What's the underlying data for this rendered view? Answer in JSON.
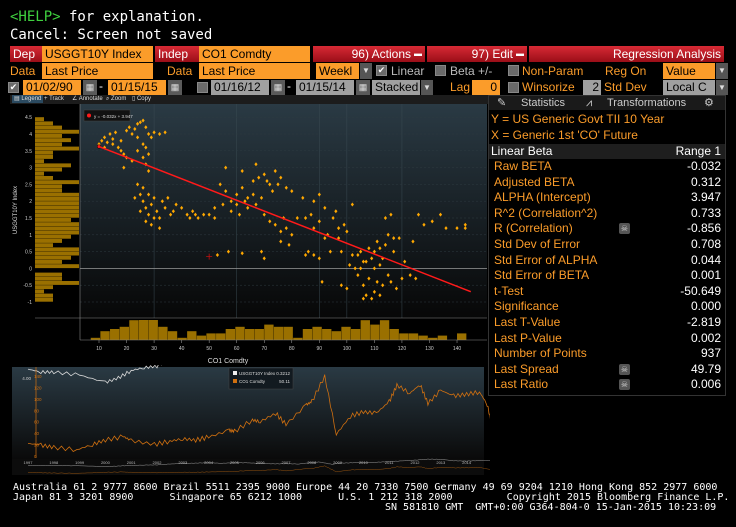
{
  "command_line": {
    "help_key": "<HELP>",
    "help_text": " for explanation.",
    "status": "Cancel: Screen not saved"
  },
  "toolbar": {
    "dep_label": "Dep",
    "dep_value": "USGGT10Y Index",
    "indep_label": "Indep",
    "indep_value": "CO1 Comdty",
    "actions_label": "96) Actions",
    "edit_label": "97) Edit",
    "title": "Regression Analysis",
    "dep_data_label": "Data",
    "dep_data_value": "Last Price",
    "indep_data_label": "Data",
    "indep_data_value": "Last Price",
    "period": "Weekl",
    "linear_label": "Linear",
    "linear_checked": true,
    "beta_label": "Beta +/-",
    "nonparam_label": "Non-Param",
    "reg_on_label": "Reg On",
    "reg_on_value": "Value",
    "range1_start": "01/02/90",
    "range1_end": "01/15/15",
    "range1_checked": true,
    "range2_start": "01/16/12",
    "range2_end": "01/15/14",
    "range2_checked": false,
    "display_mode": "Stacked",
    "lag_label": "Lag",
    "lag_value": "0",
    "winsorize_label": "Winsorize",
    "std_dev_value": "2",
    "std_dev_label": "Std Dev",
    "currency": "Local C",
    "dash": "-"
  },
  "chart_toolbar": {
    "legend": "Legend",
    "track": "Track",
    "annotate": "Annotate",
    "zoom": "Zoom",
    "copy": "Copy"
  },
  "stats_panel": {
    "tab_statistics": "Statistics",
    "tab_transformations": "Transformations",
    "y_desc": "Y = US Generic Govt TII 10 Year",
    "x_desc": "X = Generic 1st 'CO' Future",
    "header_left": "Linear Beta",
    "header_right": "Range 1",
    "rows": [
      {
        "label": "Raw BETA",
        "value": "-0.032",
        "icon": false
      },
      {
        "label": "Adjusted BETA",
        "value": "0.312",
        "icon": false
      },
      {
        "label": "ALPHA (Intercept)",
        "value": "3.947",
        "icon": false
      },
      {
        "label": "R^2 (Correlation^2)",
        "value": "0.733",
        "icon": false
      },
      {
        "label": "R (Correlation)",
        "value": "-0.856",
        "icon": true
      },
      {
        "label": "Std Dev of Error",
        "value": "0.708",
        "icon": false
      },
      {
        "label": "Std Error of ALPHA",
        "value": "0.044",
        "icon": false
      },
      {
        "label": "Std Error of BETA",
        "value": "0.001",
        "icon": false
      },
      {
        "label": "t-Test",
        "value": "-50.649",
        "icon": false
      },
      {
        "label": "Significance",
        "value": "0.000",
        "icon": false
      },
      {
        "label": "Last T-Value",
        "value": "-2.819",
        "icon": false
      },
      {
        "label": "Last P-Value",
        "value": "0.002",
        "icon": false
      },
      {
        "label": "Number of Points",
        "value": "937",
        "icon": false
      },
      {
        "label": "Last Spread",
        "value": "49.79",
        "icon": true
      },
      {
        "label": "Last Ratio",
        "value": "0.006",
        "icon": true
      }
    ]
  },
  "chart_data": [
    {
      "type": "scatter",
      "xlabel": "CO1 Comdty",
      "ylabel": "USGGT10Y Index",
      "legend": "y = -0.032x + 3.947",
      "xlim": [
        5,
        150
      ],
      "ylim": [
        -1.2,
        4.7
      ],
      "x_ticks": [
        10,
        20,
        30,
        40,
        50,
        60,
        70,
        80,
        90,
        100,
        110,
        120,
        130,
        140
      ],
      "y_ticks": [
        4.5,
        4,
        3.5,
        3,
        2.5,
        2,
        1.5,
        1,
        0.5,
        0,
        -0.5,
        -1
      ],
      "regression": {
        "slope": -0.032,
        "intercept": 3.947,
        "x_range": [
          10,
          145
        ]
      },
      "last_point": [
        50,
        0.35
      ],
      "colors": {
        "points": "#ffa800",
        "line": "#ff1a1a",
        "hist": "#9a7000"
      },
      "points": [
        [
          10,
          3.7
        ],
        [
          11,
          3.8
        ],
        [
          12,
          3.9
        ],
        [
          13,
          3.75
        ],
        [
          14,
          4.0
        ],
        [
          15,
          3.85
        ],
        [
          16,
          4.05
        ],
        [
          17,
          3.6
        ],
        [
          18,
          3.5
        ],
        [
          19,
          3.4
        ],
        [
          20,
          4.1
        ],
        [
          21,
          4.2
        ],
        [
          22,
          4.0
        ],
        [
          23,
          4.15
        ],
        [
          24,
          4.3
        ],
        [
          25,
          4.35
        ],
        [
          26,
          4.4
        ],
        [
          27,
          4.2
        ],
        [
          28,
          4.0
        ],
        [
          29,
          3.9
        ],
        [
          30,
          4.05
        ],
        [
          32,
          4.0
        ],
        [
          34,
          4.05
        ],
        [
          20,
          3.3
        ],
        [
          22,
          3.2
        ],
        [
          24,
          3.5
        ],
        [
          26,
          3.3
        ],
        [
          27,
          3.1
        ],
        [
          28,
          2.9
        ],
        [
          19,
          3.0
        ],
        [
          27,
          3.6
        ],
        [
          28,
          3.4
        ],
        [
          12,
          3.6
        ],
        [
          15,
          3.7
        ],
        [
          18,
          3.8
        ],
        [
          24,
          3.9
        ],
        [
          26,
          3.7
        ],
        [
          24,
          2.5
        ],
        [
          25,
          2.2
        ],
        [
          26,
          2.0
        ],
        [
          27,
          1.8
        ],
        [
          28,
          1.6
        ],
        [
          29,
          1.9
        ],
        [
          30,
          2.1
        ],
        [
          31,
          1.7
        ],
        [
          32,
          1.5
        ],
        [
          33,
          2.0
        ],
        [
          34,
          1.8
        ],
        [
          35,
          2.1
        ],
        [
          36,
          1.6
        ],
        [
          38,
          1.9
        ],
        [
          40,
          1.8
        ],
        [
          42,
          1.6
        ],
        [
          44,
          1.7
        ],
        [
          46,
          1.5
        ],
        [
          48,
          1.6
        ],
        [
          27,
          1.4
        ],
        [
          29,
          1.3
        ],
        [
          32,
          1.2
        ],
        [
          23,
          2.1
        ],
        [
          26,
          2.4
        ],
        [
          25,
          1.7
        ],
        [
          28,
          2.2
        ],
        [
          30,
          1.5
        ],
        [
          37,
          1.7
        ],
        [
          43,
          1.5
        ],
        [
          45,
          1.6
        ],
        [
          50,
          1.6
        ],
        [
          52,
          1.8
        ],
        [
          54,
          2.5
        ],
        [
          56,
          2.3
        ],
        [
          58,
          2.0
        ],
        [
          60,
          2.2
        ],
        [
          62,
          2.4
        ],
        [
          64,
          2.1
        ],
        [
          66,
          2.6
        ],
        [
          68,
          2.7
        ],
        [
          70,
          2.8
        ],
        [
          72,
          2.5
        ],
        [
          74,
          2.9
        ],
        [
          76,
          2.7
        ],
        [
          78,
          2.4
        ],
        [
          80,
          2.3
        ],
        [
          52,
          1.5
        ],
        [
          55,
          1.9
        ],
        [
          58,
          1.7
        ],
        [
          61,
          1.6
        ],
        [
          64,
          1.8
        ],
        [
          67,
          1.9
        ],
        [
          70,
          1.6
        ],
        [
          72,
          1.4
        ],
        [
          74,
          1.3
        ],
        [
          76,
          1.1
        ],
        [
          78,
          1.2
        ],
        [
          80,
          1.0
        ],
        [
          82,
          1.5
        ],
        [
          76,
          0.8
        ],
        [
          79,
          0.7
        ],
        [
          56,
          3.0
        ],
        [
          62,
          2.9
        ],
        [
          67,
          3.1
        ],
        [
          60,
          1.9
        ],
        [
          63,
          2.0
        ],
        [
          66,
          2.2
        ],
        [
          69,
          2.1
        ],
        [
          71,
          2.6
        ],
        [
          73,
          2.3
        ],
        [
          75,
          2.5
        ],
        [
          77,
          1.5
        ],
        [
          53,
          0.4
        ],
        [
          57,
          0.5
        ],
        [
          62,
          0.45
        ],
        [
          69,
          0.5
        ],
        [
          70,
          0.3
        ],
        [
          84,
          2.1
        ],
        [
          88,
          2.0
        ],
        [
          90,
          2.2
        ],
        [
          92,
          1.8
        ],
        [
          85,
          1.5
        ],
        [
          88,
          1.2
        ],
        [
          90,
          1.4
        ],
        [
          93,
          1.0
        ],
        [
          95,
          1.5
        ],
        [
          97,
          1.2
        ],
        [
          99,
          1.3
        ],
        [
          86,
          0.5
        ],
        [
          88,
          0.4
        ],
        [
          90,
          0.3
        ],
        [
          94,
          0.5
        ],
        [
          97,
          0.9
        ],
        [
          100,
          1.1
        ],
        [
          102,
          1.9
        ],
        [
          85,
          0.4
        ],
        [
          91,
          -0.4
        ],
        [
          87,
          1.6
        ],
        [
          92,
          0.9
        ],
        [
          96,
          1.7
        ],
        [
          98,
          0.5
        ],
        [
          98,
          -0.5
        ],
        [
          100,
          -0.6
        ],
        [
          101,
          0.1
        ],
        [
          102,
          0.4
        ],
        [
          103,
          0.0
        ],
        [
          104,
          -0.2
        ],
        [
          105,
          0.5
        ],
        [
          106,
          0.2
        ],
        [
          107,
          -0.8
        ],
        [
          108,
          0.6
        ],
        [
          109,
          0.3
        ],
        [
          110,
          -0.7
        ],
        [
          111,
          0.8
        ],
        [
          112,
          0.1
        ],
        [
          113,
          -0.5
        ],
        [
          114,
          0.7
        ],
        [
          115,
          1.0
        ],
        [
          116,
          -0.4
        ],
        [
          117,
          0.5
        ],
        [
          118,
          -0.6
        ],
        [
          119,
          0.9
        ],
        [
          120,
          -0.3
        ],
        [
          106,
          -0.9
        ],
        [
          109,
          -0.9
        ],
        [
          112,
          -0.8
        ],
        [
          114,
          1.5
        ],
        [
          116,
          1.6
        ],
        [
          110,
          0.5
        ],
        [
          105,
          0.0
        ],
        [
          108,
          -0.3
        ],
        [
          113,
          0.3
        ],
        [
          121,
          0.2
        ],
        [
          123,
          -0.2
        ],
        [
          125,
          -0.3
        ],
        [
          124,
          0.8
        ],
        [
          126,
          1.6
        ],
        [
          128,
          1.3
        ],
        [
          131,
          1.4
        ],
        [
          134,
          1.6
        ],
        [
          136,
          1.2
        ],
        [
          140,
          1.2
        ],
        [
          143,
          1.2
        ],
        [
          143,
          1.3
        ],
        [
          107,
          0.2
        ],
        [
          110,
          0.0
        ],
        [
          111,
          -0.4
        ],
        [
          115,
          -0.2
        ],
        [
          117,
          0.9
        ],
        [
          104,
          0.4
        ],
        [
          106,
          -0.5
        ],
        [
          112,
          0.6
        ]
      ]
    },
    {
      "type": "line",
      "x_ticks": [
        1997,
        1998,
        1999,
        2000,
        2001,
        2002,
        2003,
        2004,
        2005,
        2006,
        2007,
        2008,
        2009,
        2010,
        2011,
        2012,
        2013,
        2014
      ],
      "y_left_ticks": [
        "4.00",
        "3.00",
        "2.00",
        "1.00",
        "0.00",
        "-1.00"
      ],
      "y_left_lim": [
        -1.3,
        4.6
      ],
      "y_right_ticks": [
        140,
        120,
        100,
        80,
        60,
        40,
        20,
        0
      ],
      "y_right_lim": [
        0,
        145
      ],
      "series": [
        {
          "name": "USGGT10Y Index",
          "last": "0.3212",
          "color": "#d8d8d8",
          "axis": "left",
          "values": [
            [
              1997,
              3.4
            ],
            [
              1997.5,
              3.6
            ],
            [
              1998,
              3.6
            ],
            [
              1999,
              3.8
            ],
            [
              2000,
              4.3
            ],
            [
              2000.5,
              4.0
            ],
            [
              2001,
              3.5
            ],
            [
              2001.5,
              3.3
            ],
            [
              2002,
              3.2
            ],
            [
              2002.5,
              2.6
            ],
            [
              2003,
              2.2
            ],
            [
              2003.5,
              2.0
            ],
            [
              2004,
              1.7
            ],
            [
              2004.5,
              2.1
            ],
            [
              2005,
              1.7
            ],
            [
              2005.5,
              1.8
            ],
            [
              2006,
              2.2
            ],
            [
              2006.5,
              2.5
            ],
            [
              2007,
              2.4
            ],
            [
              2007.5,
              2.6
            ],
            [
              2008,
              1.5
            ],
            [
              2008.3,
              1.2
            ],
            [
              2008.8,
              2.9
            ],
            [
              2009,
              2.0
            ],
            [
              2009.5,
              1.8
            ],
            [
              2010,
              1.5
            ],
            [
              2010.5,
              1.4
            ],
            [
              2011,
              1.0
            ],
            [
              2011.5,
              0.5
            ],
            [
              2012,
              0.0
            ],
            [
              2012.5,
              -0.7
            ],
            [
              2013,
              -0.6
            ],
            [
              2013.5,
              0.4
            ],
            [
              2014,
              0.6
            ],
            [
              2014.5,
              0.3
            ],
            [
              2015,
              0.35
            ]
          ]
        },
        {
          "name": "CO1 Comdty",
          "last": "50.11",
          "color": "#d07010",
          "axis": "right",
          "values": [
            [
              1997,
              22
            ],
            [
              1997.5,
              19
            ],
            [
              1998,
              15
            ],
            [
              1998.9,
              11
            ],
            [
              1999.5,
              20
            ],
            [
              2000,
              28
            ],
            [
              2000.7,
              34
            ],
            [
              2001,
              27
            ],
            [
              2001.9,
              20
            ],
            [
              2002.5,
              26
            ],
            [
              2003,
              30
            ],
            [
              2003.5,
              28
            ],
            [
              2004,
              33
            ],
            [
              2004.8,
              45
            ],
            [
              2005,
              43
            ],
            [
              2005.7,
              63
            ],
            [
              2006,
              60
            ],
            [
              2006.6,
              75
            ],
            [
              2007,
              55
            ],
            [
              2007.8,
              90
            ],
            [
              2008,
              95
            ],
            [
              2008.5,
              140
            ],
            [
              2008.95,
              38
            ],
            [
              2009.5,
              70
            ],
            [
              2010,
              77
            ],
            [
              2010.5,
              75
            ],
            [
              2011,
              95
            ],
            [
              2011.3,
              124
            ],
            [
              2011.8,
              110
            ],
            [
              2012.2,
              125
            ],
            [
              2012.5,
              92
            ],
            [
              2013,
              115
            ],
            [
              2013.5,
              105
            ],
            [
              2014,
              108
            ],
            [
              2014.5,
              112
            ],
            [
              2014.8,
              90
            ],
            [
              2015,
              50
            ]
          ]
        }
      ]
    }
  ],
  "footer": {
    "line1": "Australia 61 2 9777 8600 Brazil 5511 2395 9000 Europe 44 20 7330 7500 Germany 49 69 9204 1210 Hong Kong 852 2977 6000",
    "line2": "Japan 81 3 3201 8900      Singapore 65 6212 1000      U.S. 1 212 318 2000         Copyright 2015 Bloomberg Finance L.P.",
    "line3": "SN 581810 GMT  GMT+0:00 G364-804-0 15-Jan-2015 10:23:09"
  }
}
